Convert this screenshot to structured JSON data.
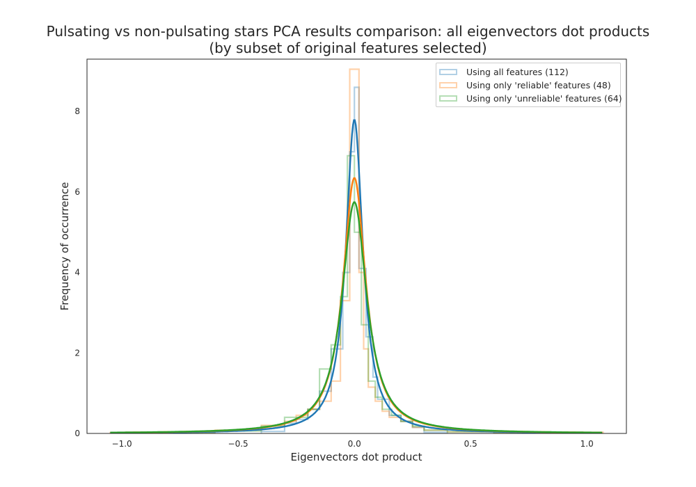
{
  "figure": {
    "title_line1": "Pulsating vs non-pulsating stars PCA results comparison: all eigenvectors dot products",
    "title_line2": "(by subset of original features selected)"
  },
  "chart_data": {
    "type": "histogram",
    "xlabel": "Eigenvectors dot product",
    "ylabel": "Frequency of occurrence",
    "xlim": [
      -1.15,
      1.17
    ],
    "ylim": [
      0,
      9.3
    ],
    "xticks": [
      -1.0,
      -0.5,
      0.0,
      0.5,
      1.0
    ],
    "xtick_labels": [
      "−1.0",
      "−0.5",
      "0.0",
      "0.5",
      "1.0"
    ],
    "yticks": [
      0,
      2,
      4,
      6,
      8
    ],
    "ytick_labels": [
      "0",
      "2",
      "4",
      "6",
      "8"
    ],
    "grid": false,
    "legend_position": "top-right",
    "series": [
      {
        "name": "Using all features (112)",
        "color": "#1f77b4",
        "kde_peak": 7.8,
        "kde_width": 0.045,
        "hist_edges": [
          -0.4,
          -0.3,
          -0.25,
          -0.2,
          -0.15,
          -0.1,
          -0.05,
          -0.02,
          0.0,
          0.02,
          0.05,
          0.08,
          0.1,
          0.15,
          0.2,
          0.25,
          0.3,
          0.4
        ],
        "hist_values": [
          0.05,
          0.25,
          0.35,
          0.6,
          1.05,
          2.1,
          4.0,
          7.0,
          8.6,
          4.1,
          2.4,
          1.4,
          0.85,
          0.45,
          0.3,
          0.15,
          0.03
        ]
      },
      {
        "name": "Using only 'reliable' features (48)",
        "color": "#ff7f0e",
        "kde_peak": 6.35,
        "kde_width": 0.06,
        "hist_edges": [
          -1.05,
          -0.9,
          -0.6,
          -0.4,
          -0.3,
          -0.25,
          -0.2,
          -0.15,
          -0.1,
          -0.06,
          -0.02,
          0.02,
          0.04,
          0.06,
          0.09,
          0.12,
          0.15,
          0.2,
          0.25,
          0.3,
          0.4,
          0.6,
          0.9,
          1.07
        ],
        "hist_values": [
          0.02,
          0.03,
          0.08,
          0.2,
          0.3,
          0.45,
          0.6,
          0.8,
          1.3,
          3.3,
          9.05,
          4.0,
          2.1,
          1.15,
          0.8,
          0.55,
          0.4,
          0.3,
          0.15,
          0.08,
          0.04,
          0.02,
          0.03
        ]
      },
      {
        "name": "Using only 'unreliable' features (64)",
        "color": "#2ca02c",
        "kde_peak": 5.75,
        "kde_width": 0.065,
        "hist_edges": [
          -1.0,
          -0.6,
          -0.4,
          -0.3,
          -0.2,
          -0.15,
          -0.1,
          -0.06,
          -0.03,
          0.0,
          0.03,
          0.06,
          0.09,
          0.12,
          0.16,
          0.2,
          0.25,
          0.3,
          0.4,
          0.6,
          1.0
        ],
        "hist_values": [
          0.02,
          0.06,
          0.18,
          0.4,
          0.6,
          1.6,
          2.2,
          3.4,
          6.9,
          5.0,
          2.7,
          1.3,
          0.9,
          0.6,
          0.45,
          0.3,
          0.18,
          0.08,
          0.04,
          0.02
        ]
      }
    ]
  }
}
